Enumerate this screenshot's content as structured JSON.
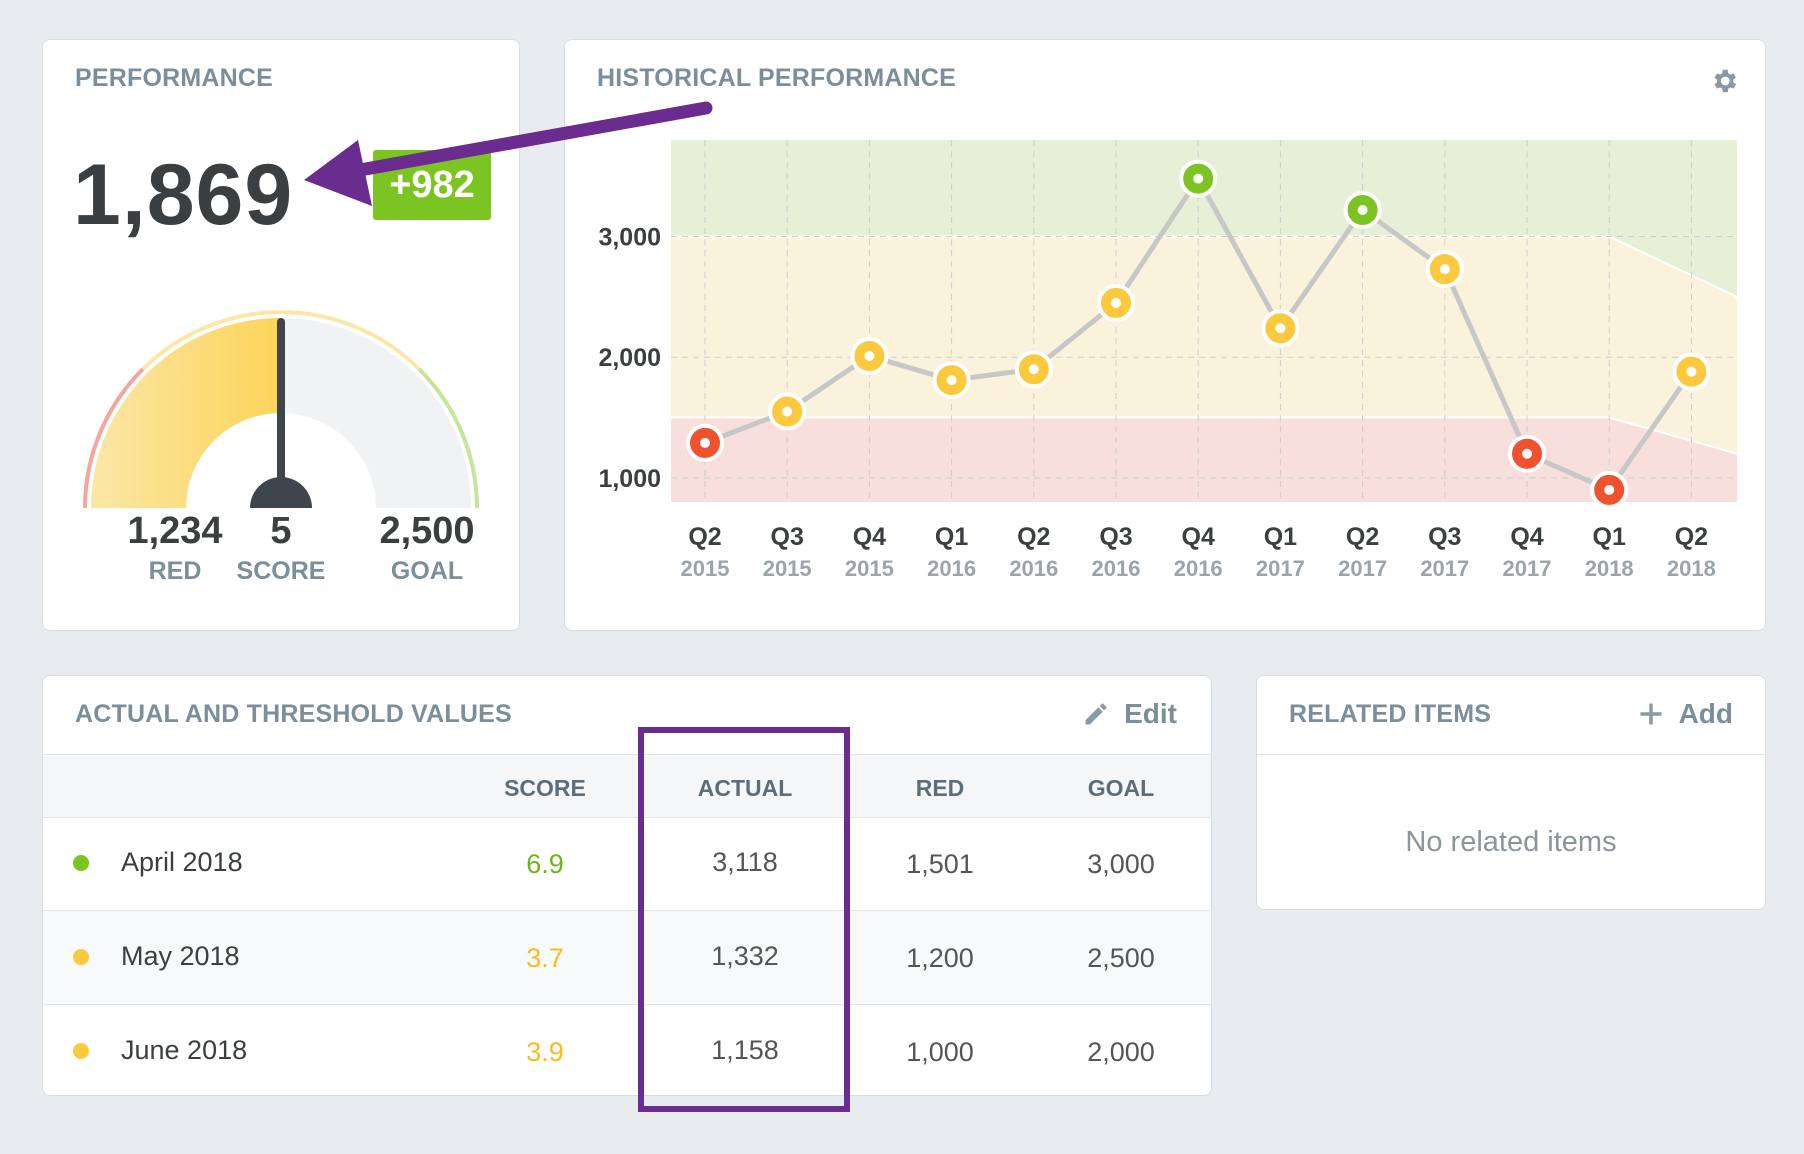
{
  "performance": {
    "title": "PERFORMANCE",
    "value": "1,869",
    "delta": "+982",
    "gauge_fraction": 0.5,
    "stats": [
      {
        "value": "1,234",
        "label": "RED"
      },
      {
        "value": "5",
        "label": "SCORE"
      },
      {
        "value": "2,500",
        "label": "GOAL"
      }
    ],
    "colors": {
      "green": "#7cc421",
      "yellow": "#fbc93d",
      "red": "#f0522f"
    }
  },
  "historical": {
    "title": "HISTORICAL PERFORMANCE",
    "settings_icon": "gear-icon"
  },
  "chart_data": {
    "type": "line",
    "title": "HISTORICAL PERFORMANCE",
    "categories": [
      "Q2 2015",
      "Q3 2015",
      "Q4 2015",
      "Q1 2016",
      "Q2 2016",
      "Q3 2016",
      "Q4 2016",
      "Q1 2017",
      "Q2 2017",
      "Q3 2017",
      "Q4 2017",
      "Q1 2018",
      "Q2 2018"
    ],
    "tick_quarters": [
      "Q2",
      "Q3",
      "Q4",
      "Q1",
      "Q2",
      "Q3",
      "Q4",
      "Q1",
      "Q2",
      "Q3",
      "Q4",
      "Q1",
      "Q2"
    ],
    "tick_years": [
      "2015",
      "2015",
      "2015",
      "2016",
      "2016",
      "2016",
      "2016",
      "2017",
      "2017",
      "2017",
      "2017",
      "2018",
      "2018"
    ],
    "series": [
      {
        "values": [
          1290,
          1550,
          2010,
          1810,
          1900,
          2450,
          3480,
          2240,
          3220,
          2730,
          1200,
          900,
          1880
        ]
      }
    ],
    "point_status": [
      "red",
      "yellow",
      "yellow",
      "yellow",
      "yellow",
      "yellow",
      "green",
      "yellow",
      "green",
      "yellow",
      "red",
      "red",
      "yellow"
    ],
    "y_ticks": [
      "3,000",
      "2,000",
      "1,000"
    ],
    "y_tick_values": [
      3000,
      2000,
      1000
    ],
    "ylim": [
      800,
      3800
    ],
    "red_threshold": [
      1500,
      1500,
      1500,
      1500,
      1500,
      1500,
      1500,
      1500,
      1500,
      1500,
      1500,
      1500,
      1200
    ],
    "goal_threshold": [
      3000,
      3000,
      3000,
      3000,
      3000,
      3000,
      3000,
      3000,
      3000,
      3000,
      3000,
      3000,
      2500
    ],
    "grid": true
  },
  "atv": {
    "title": "ACTUAL AND THRESHOLD VALUES",
    "edit_label": "Edit",
    "headers": {
      "score": "SCORE",
      "actual": "ACTUAL",
      "red": "RED",
      "goal": "GOAL"
    },
    "rows": [
      {
        "label": "April 2018",
        "score": "6.9",
        "actual": "3,118",
        "red": "1,501",
        "goal": "3,000",
        "status_color": "#7cc421"
      },
      {
        "label": "May 2018",
        "score": "3.7",
        "actual": "1,332",
        "red": "1,200",
        "goal": "2,500",
        "status_color": "#fbc93d"
      },
      {
        "label": "June 2018",
        "score": "3.9",
        "actual": "1,158",
        "red": "1,000",
        "goal": "2,000",
        "status_color": "#fbc93d"
      }
    ]
  },
  "related": {
    "title": "RELATED ITEMS",
    "add_label": "Add",
    "empty": "No related items"
  }
}
